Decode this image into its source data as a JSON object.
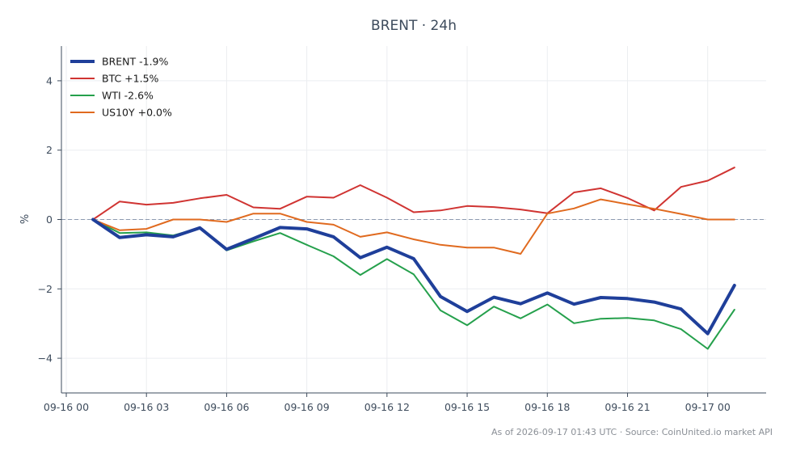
{
  "chart_data": {
    "type": "line",
    "title": "BRENT · 24h",
    "xlabel": "",
    "ylabel": "%",
    "ylim": [
      -5,
      5
    ],
    "yticks": [
      -4,
      -2,
      0,
      2,
      4
    ],
    "ytick_labels": [
      "−4",
      "−2",
      "0",
      "2",
      "4"
    ],
    "xticks": [
      "09-16 00",
      "09-16 03",
      "09-16 06",
      "09-16 09",
      "09-16 12",
      "09-16 15",
      "09-16 18",
      "09-16 21",
      "09-17 00"
    ],
    "x_hours": [
      1,
      2,
      3,
      4,
      5,
      6,
      7,
      8,
      9,
      10,
      11,
      12,
      13,
      14,
      15,
      16,
      17,
      18,
      19,
      20,
      21,
      22,
      23,
      24,
      25
    ],
    "baseline": 0,
    "grid": true,
    "legend_position": "top-left",
    "series": [
      {
        "name": "BRENT -1.9%",
        "color": "#1f3f9a",
        "width": 4,
        "values": [
          0,
          -0.52,
          -0.44,
          -0.5,
          -0.24,
          -0.86,
          -0.55,
          -0.23,
          -0.27,
          -0.5,
          -1.1,
          -0.8,
          -1.13,
          -2.22,
          -2.65,
          -2.24,
          -2.43,
          -2.12,
          -2.44,
          -2.25,
          -2.28,
          -2.38,
          -2.58,
          -3.29,
          -1.9
        ]
      },
      {
        "name": "BTC +1.5%",
        "color": "#d03432",
        "width": 2,
        "values": [
          0,
          0.52,
          0.43,
          0.48,
          0.61,
          0.71,
          0.35,
          0.31,
          0.66,
          0.63,
          0.99,
          0.63,
          0.21,
          0.26,
          0.39,
          0.36,
          0.29,
          0.18,
          0.78,
          0.9,
          0.62,
          0.26,
          0.94,
          1.12,
          1.5
        ]
      },
      {
        "name": "WTI -2.6%",
        "color": "#25a04c",
        "width": 2,
        "values": [
          0,
          -0.39,
          -0.37,
          -0.46,
          -0.24,
          -0.89,
          -0.63,
          -0.39,
          -0.73,
          -1.06,
          -1.6,
          -1.14,
          -1.58,
          -2.62,
          -3.05,
          -2.51,
          -2.85,
          -2.45,
          -2.99,
          -2.86,
          -2.84,
          -2.91,
          -3.16,
          -3.73,
          -2.6
        ]
      },
      {
        "name": "US10Y +0.0%",
        "color": "#e06a1f",
        "width": 2,
        "values": [
          0,
          -0.31,
          -0.27,
          0.0,
          0.0,
          -0.07,
          0.17,
          0.17,
          -0.07,
          -0.15,
          -0.5,
          -0.37,
          -0.57,
          -0.73,
          -0.81,
          -0.81,
          -0.99,
          0.17,
          0.32,
          0.58,
          0.44,
          0.31,
          0.16,
          0.0,
          0.0
        ]
      }
    ],
    "footnote": "As of 2026-09-17 01:43 UTC · Source: CoinUnited.io market API",
    "colors": {
      "axis": "#3d4b5c",
      "grid": "#ebedf0",
      "baseline": "#8d9ab0"
    }
  }
}
